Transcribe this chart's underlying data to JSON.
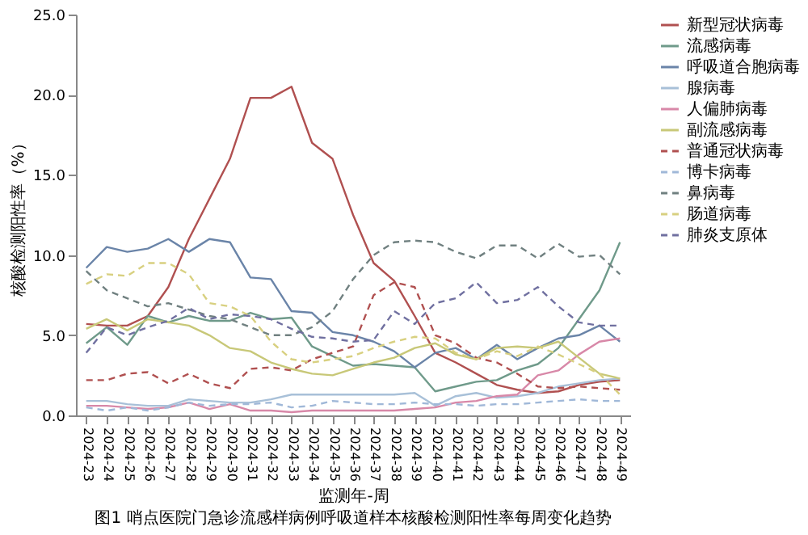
{
  "chart_data": {
    "type": "line",
    "xlabel": "监测年-周",
    "ylabel": "核酸检测阳性率（%）",
    "annotations": [
      "图1 哨点医院门急诊流感样病例呼吸道样本核酸检测阳性率每周变化趋势"
    ],
    "categories": [
      "2024-23",
      "2024-24",
      "2024-25",
      "2024-26",
      "2024-27",
      "2024-28",
      "2024-29",
      "2024-30",
      "2024-31",
      "2024-32",
      "2024-33",
      "2024-34",
      "2024-35",
      "2024-36",
      "2024-37",
      "2024-38",
      "2024-39",
      "2024-40",
      "2024-41",
      "2024-42",
      "2024-43",
      "2024-44",
      "2024-45",
      "2024-46",
      "2024-47",
      "2024-48",
      "2024-49"
    ],
    "ylim": [
      0,
      25
    ],
    "yticks": [
      {
        "value": 0,
        "label": "0.0"
      },
      {
        "value": 5,
        "label": "5.0"
      },
      {
        "value": 10,
        "label": "10.0"
      },
      {
        "value": 15,
        "label": "15.0"
      },
      {
        "value": 20,
        "label": "20.0"
      },
      {
        "value": 25,
        "label": "25.0"
      }
    ],
    "grid": false,
    "legend": "right",
    "marker": "none",
    "series": [
      {
        "name": "新型冠状病毒",
        "color": "#b05050",
        "line_style": "solid",
        "values": [
          5.7,
          5.6,
          5.6,
          6.2,
          8.0,
          11.0,
          13.5,
          16.0,
          19.8,
          19.8,
          20.5,
          17.0,
          16.0,
          12.5,
          9.5,
          8.4,
          6.2,
          3.9,
          3.3,
          2.6,
          1.9,
          1.6,
          1.4,
          1.5,
          1.9,
          2.1,
          2.2
        ]
      },
      {
        "name": "流感病毒",
        "color": "#6f9a8a",
        "line_style": "solid",
        "values": [
          4.5,
          5.5,
          4.4,
          6.2,
          5.8,
          6.2,
          5.9,
          5.9,
          6.4,
          6.0,
          6.1,
          4.3,
          3.7,
          3.1,
          3.2,
          3.1,
          3.0,
          1.5,
          1.8,
          2.1,
          2.2,
          2.8,
          3.2,
          4.2,
          6.0,
          7.8,
          10.8
        ]
      },
      {
        "name": "呼吸道合胞病毒",
        "color": "#6a84a8",
        "line_style": "solid",
        "values": [
          9.2,
          10.5,
          10.2,
          10.4,
          11.0,
          10.2,
          11.0,
          10.8,
          8.6,
          8.5,
          6.5,
          6.4,
          5.2,
          5.0,
          4.6,
          4.0,
          3.0,
          3.9,
          4.2,
          3.5,
          4.4,
          3.5,
          4.2,
          4.8,
          5.0,
          5.6,
          4.6
        ]
      },
      {
        "name": "腺病毒",
        "color": "#a8c0d8",
        "line_style": "solid",
        "values": [
          0.9,
          0.9,
          0.7,
          0.6,
          0.6,
          1.0,
          0.9,
          0.8,
          0.8,
          1.0,
          1.3,
          1.3,
          1.3,
          1.3,
          1.3,
          1.3,
          1.4,
          0.6,
          1.2,
          1.4,
          1.1,
          1.2,
          1.4,
          1.8,
          2.0,
          2.2,
          2.3
        ]
      },
      {
        "name": "人偏肺病毒",
        "color": "#d888a8",
        "line_style": "solid",
        "values": [
          0.6,
          0.6,
          0.5,
          0.4,
          0.5,
          0.8,
          0.4,
          0.7,
          0.3,
          0.3,
          0.2,
          0.3,
          0.3,
          0.3,
          0.3,
          0.3,
          0.4,
          0.5,
          0.8,
          0.9,
          1.2,
          1.3,
          2.5,
          2.8,
          3.8,
          4.6,
          4.8
        ]
      },
      {
        "name": "副流感病毒",
        "color": "#c8c878",
        "line_style": "solid",
        "values": [
          5.4,
          6.0,
          5.3,
          6.0,
          5.8,
          5.6,
          5.0,
          4.2,
          4.0,
          3.3,
          2.9,
          2.6,
          2.5,
          2.9,
          3.3,
          3.6,
          4.2,
          4.5,
          3.8,
          3.5,
          4.2,
          4.3,
          4.2,
          4.6,
          3.6,
          2.6,
          2.3
        ]
      },
      {
        "name": "普通冠状病毒",
        "color": "#b05050",
        "line_style": "dashed",
        "values": [
          2.2,
          2.2,
          2.6,
          2.7,
          2.0,
          2.6,
          2.0,
          1.7,
          2.9,
          3.0,
          2.8,
          3.5,
          3.9,
          4.3,
          7.5,
          8.3,
          8.0,
          5.0,
          4.5,
          3.6,
          3.3,
          2.6,
          1.8,
          1.7,
          1.8,
          1.7,
          1.6
        ]
      },
      {
        "name": "博卡病毒",
        "color": "#a0b8d8",
        "line_style": "dashed",
        "values": [
          0.5,
          0.3,
          0.5,
          0.3,
          0.5,
          0.8,
          0.6,
          0.7,
          0.7,
          0.8,
          0.5,
          0.6,
          0.9,
          0.8,
          0.7,
          0.7,
          0.8,
          0.7,
          0.7,
          0.6,
          0.7,
          0.7,
          0.8,
          0.9,
          1.0,
          0.9,
          0.9
        ]
      },
      {
        "name": "鼻病毒",
        "color": "#708080",
        "line_style": "dashed",
        "values": [
          9.0,
          7.8,
          7.3,
          6.8,
          7.0,
          6.6,
          6.2,
          6.0,
          5.5,
          5.0,
          5.0,
          5.5,
          6.5,
          8.5,
          10.0,
          10.8,
          10.9,
          10.8,
          10.2,
          9.8,
          10.6,
          10.6,
          9.8,
          10.7,
          9.9,
          10.0,
          8.8
        ]
      },
      {
        "name": "肠道病毒",
        "color": "#d8d080",
        "line_style": "dashed",
        "values": [
          8.2,
          8.8,
          8.7,
          9.5,
          9.5,
          8.8,
          7.0,
          6.8,
          6.2,
          4.6,
          3.5,
          3.3,
          3.5,
          3.7,
          4.2,
          4.6,
          4.9,
          4.8,
          3.9,
          3.5,
          4.0,
          3.7,
          4.3,
          3.8,
          3.2,
          2.6,
          1.3
        ]
      },
      {
        "name": "肺炎支原体",
        "color": "#7070a0",
        "line_style": "dashed",
        "values": [
          3.9,
          5.5,
          5.0,
          5.5,
          5.9,
          6.7,
          6.0,
          6.3,
          6.2,
          6.0,
          5.4,
          4.9,
          4.8,
          4.6,
          4.7,
          6.5,
          5.7,
          7.0,
          7.3,
          8.3,
          7.0,
          7.2,
          8.0,
          6.8,
          5.8,
          5.6,
          5.6
        ]
      }
    ]
  }
}
